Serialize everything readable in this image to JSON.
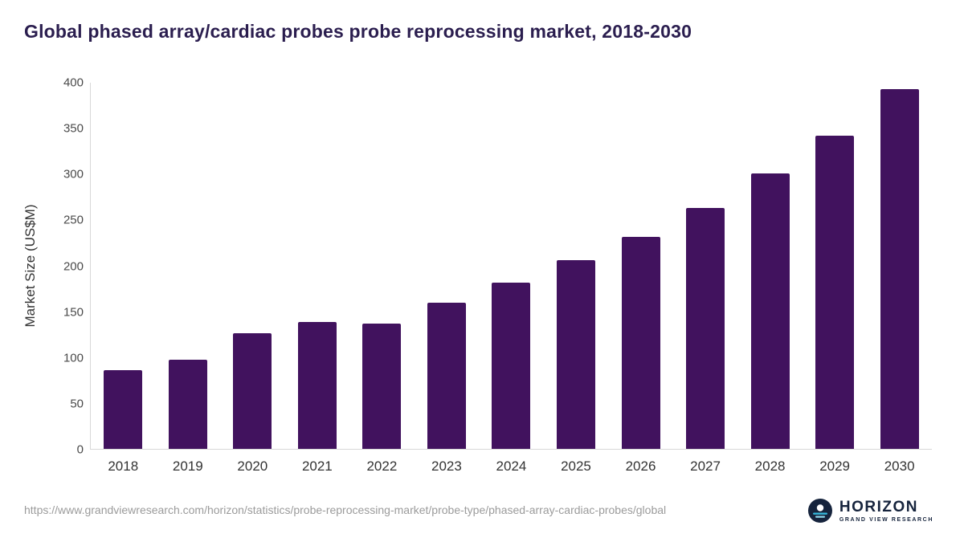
{
  "title": "Global phased array/cardiac probes probe reprocessing market, 2018-2030",
  "footer": {
    "source_url": "https://www.grandviewresearch.com/horizon/statistics/probe-reprocessing-market/probe-type/phased-array-cardiac-probes/global",
    "logo_name": "HORIZON",
    "logo_sub": "GRAND VIEW RESEARCH"
  },
  "colors": {
    "bar": "#41125e",
    "title": "#2b1e4f",
    "axis_line": "#d8d8d8",
    "tick_label": "#4a4a4a",
    "url_text": "#9b9b9b",
    "logo_navy": "#16243d",
    "logo_teal": "#35b6d9"
  },
  "chart_data": {
    "type": "bar",
    "title": "Global phased array/cardiac probes probe reprocessing market, 2018-2030",
    "categories": [
      "2018",
      "2019",
      "2020",
      "2021",
      "2022",
      "2023",
      "2024",
      "2025",
      "2026",
      "2027",
      "2028",
      "2029",
      "2030"
    ],
    "values": [
      86,
      97,
      126,
      139,
      137,
      160,
      182,
      206,
      232,
      263,
      301,
      342,
      393
    ],
    "xlabel": "",
    "ylabel": "Market Size (US$M)",
    "ylim": [
      0,
      400
    ],
    "yticks": [
      0,
      50,
      100,
      150,
      200,
      250,
      300,
      350,
      400
    ],
    "grid": false,
    "legend": false,
    "bar_color": "#41125e"
  }
}
